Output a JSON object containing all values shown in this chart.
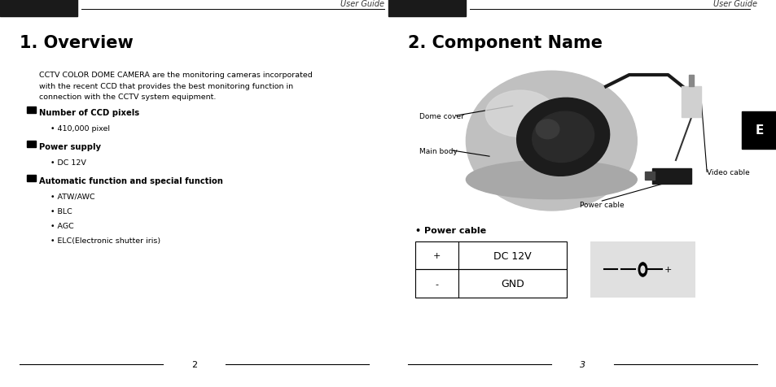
{
  "bg_color": "#ffffff",
  "left_page": {
    "header_text": "User Guide",
    "title": "1. Overview",
    "body_line1": "CCTV COLOR DOME CAMERA are the monitoring cameras incorporated",
    "body_line2": "with the recent CCD that provides the best monitoring function in",
    "body_line3": "connection with the CCTV system equipment.",
    "sections": [
      {
        "heading": "Number of CCD pixels",
        "bullets": [
          "410,000 pixel"
        ]
      },
      {
        "heading": "Power supply",
        "bullets": [
          "DC 12V"
        ]
      },
      {
        "heading": "Automatic function and special function",
        "bullets": [
          "ATW/AWC",
          "BLC",
          "AGC",
          "ELC(Electronic shutter iris)"
        ]
      }
    ],
    "footer_page": "2"
  },
  "right_page": {
    "header_text": "User Guide",
    "title": "2. Component Name",
    "tab_letter": "E",
    "power_cable_title": "• Power cable",
    "table_rows": [
      [
        "+",
        "DC 12V"
      ],
      [
        "-",
        "GND"
      ]
    ],
    "footer_page": "3"
  },
  "header_bar_color": "#1a1a1a",
  "gray_bg": "#e0e0e0"
}
